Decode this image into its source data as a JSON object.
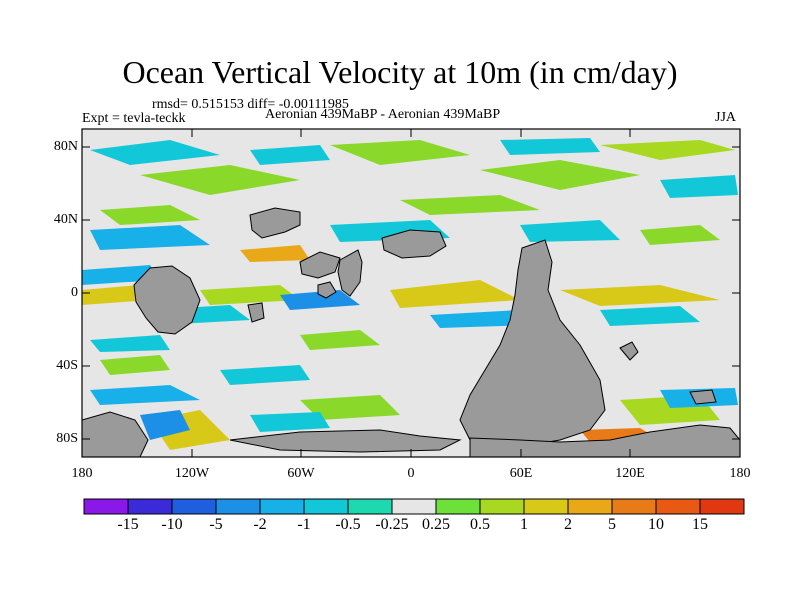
{
  "title": "Ocean Vertical Velocity at 10m (in cm/day)",
  "stats": "rmsd= 0.515153 diff= -0.00111985",
  "experiment": "Expt = tevla-teckk",
  "comparison": "Aeronian 439MaBP - Aeronian 439MaBP",
  "season": "JJA",
  "lat_ticks": [
    "80N",
    "40N",
    "0",
    "40S",
    "80S"
  ],
  "lon_ticks": [
    "180",
    "120W",
    "60W",
    "0",
    "60E",
    "120E",
    "180"
  ],
  "colorbar": {
    "labels": [
      "-15",
      "-10",
      "-5",
      "-2",
      "-1",
      "-0.5",
      "-0.25",
      "0.25",
      "0.5",
      "1",
      "2",
      "5",
      "10",
      "15"
    ],
    "colors": [
      "#8a18e8",
      "#3a2ad8",
      "#1e5fe0",
      "#1c8fe6",
      "#18b0e8",
      "#12c8d8",
      "#1ed8b0",
      "#e6e6e6",
      "#6ee03a",
      "#a8d820",
      "#d8c818",
      "#e8a818",
      "#e87a18",
      "#e85a14",
      "#e03810"
    ]
  },
  "colors": {
    "land": "#9a9a9a",
    "neutral": "#e6e6e6"
  }
}
